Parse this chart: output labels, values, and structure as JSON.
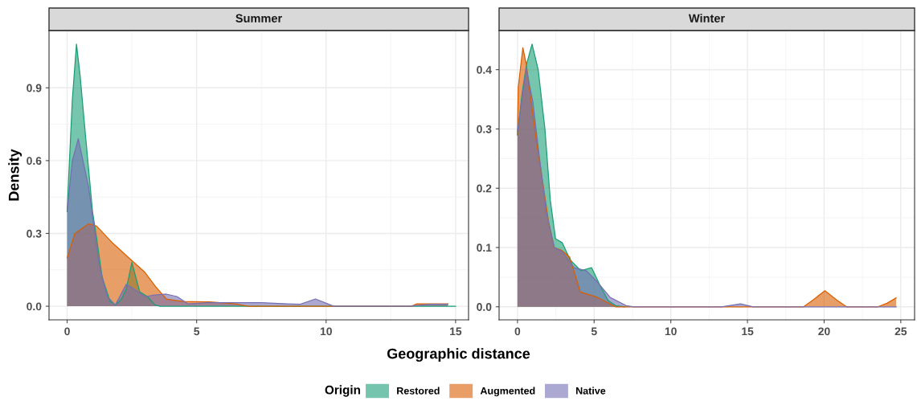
{
  "chart_data": [
    {
      "type": "area",
      "title": "Summer",
      "xlabel": "Geographic distance",
      "ylabel": "Density",
      "legend_title": "Origin",
      "legend": "bottom",
      "grid": true,
      "xlim": [
        -0.7,
        15.5
      ],
      "xticks": [
        0,
        5,
        10,
        15
      ],
      "ylim": [
        -0.056,
        1.136
      ],
      "yticks": [
        {
          "value": 0,
          "label": "0.0"
        },
        0.3,
        0.6,
        0.9
      ],
      "series": [
        {
          "name": "Restored",
          "color": "#1b9e77",
          "x": [
            0,
            0.05,
            0.2,
            0.36,
            0.5,
            0.72,
            0.98,
            1.14,
            1.35,
            1.66,
            1.86,
            2.1,
            2.28,
            2.5,
            2.8,
            3.1,
            3.4,
            3.6,
            15
          ],
          "values": [
            0.39,
            0.51,
            0.85,
            1.08,
            0.95,
            0.69,
            0.39,
            0.28,
            0.12,
            0.02,
            0.005,
            0.03,
            0.07,
            0.18,
            0.06,
            0.04,
            0.005,
            0,
            0
          ]
        },
        {
          "name": "Augmented",
          "color": "#d95f02",
          "x": [
            0,
            0.3,
            0.83,
            1.14,
            1.76,
            2.48,
            3.0,
            3.42,
            3.83,
            4.45,
            5.5,
            6.5,
            7.0,
            13.3,
            13.5,
            14.7
          ],
          "values": [
            0.2,
            0.3,
            0.34,
            0.33,
            0.26,
            0.19,
            0.14,
            0.08,
            0.03,
            0.02,
            0.018,
            0.01,
            0,
            0,
            0.01,
            0.01
          ]
        },
        {
          "name": "Native",
          "color": "#7570b3",
          "x": [
            0,
            0.2,
            0.43,
            0.83,
            0.98,
            1.24,
            1.55,
            1.86,
            2.28,
            2.6,
            3.0,
            3.3,
            3.83,
            4.24,
            4.66,
            5.5,
            6.5,
            7.5,
            8.5,
            9.0,
            9.59,
            10.3,
            13.2,
            14.0,
            14.7
          ],
          "values": [
            0.39,
            0.6,
            0.69,
            0.49,
            0.37,
            0.17,
            0.04,
            0.005,
            0.09,
            0.07,
            0.04,
            0.045,
            0.05,
            0.04,
            0.01,
            0.015,
            0.015,
            0.015,
            0.01,
            0.008,
            0.03,
            0,
            0,
            0.008,
            0.008
          ]
        }
      ]
    },
    {
      "type": "area",
      "title": "Winter",
      "grid": true,
      "xlim": [
        -1.2,
        25.9
      ],
      "xticks": [
        0,
        5,
        10,
        15,
        20,
        25
      ],
      "ylim": [
        -0.022,
        0.466
      ],
      "yticks": [
        {
          "value": 0,
          "label": "0.0"
        },
        0.1,
        0.2,
        0.3,
        0.4
      ],
      "series": [
        {
          "color": "#1b9e77",
          "x": [
            0,
            0.3,
            0.6,
            0.95,
            1.35,
            1.79,
            2.14,
            2.48,
            2.92,
            3.44,
            4.13,
            4.83,
            5.35,
            5.9,
            6.4,
            7.0
          ],
          "values": [
            0.29,
            0.36,
            0.41,
            0.443,
            0.4,
            0.3,
            0.18,
            0.115,
            0.108,
            0.079,
            0.061,
            0.066,
            0.038,
            0.011,
            0.002,
            0
          ]
        },
        {
          "color": "#d95f02",
          "x": [
            0,
            0.05,
            0.35,
            0.57,
            1.18,
            2.05,
            2.4,
            2.9,
            3.4,
            4.1,
            5.2,
            6.4,
            18.66,
            19.3,
            20.05,
            20.8,
            21.46,
            23.5,
            24.1,
            24.7
          ],
          "values": [
            0.29,
            0.37,
            0.437,
            0.41,
            0.29,
            0.14,
            0.1,
            0.095,
            0.084,
            0.025,
            0.016,
            0,
            0,
            0.012,
            0.027,
            0.012,
            0,
            0,
            0.006,
            0.015
          ]
        },
        {
          "color": "#7570b3",
          "x": [
            0,
            0.57,
            1.0,
            1.44,
            1.88,
            2.4,
            2.92,
            3.7,
            4.48,
            5.17,
            6.04,
            7.08,
            7.6,
            13.3,
            14.55,
            15.38,
            24.7
          ],
          "values": [
            0.296,
            0.402,
            0.346,
            0.25,
            0.16,
            0.1,
            0.093,
            0.066,
            0.061,
            0.043,
            0.016,
            0.002,
            0,
            0,
            0.005,
            0,
            0
          ]
        }
      ]
    }
  ]
}
